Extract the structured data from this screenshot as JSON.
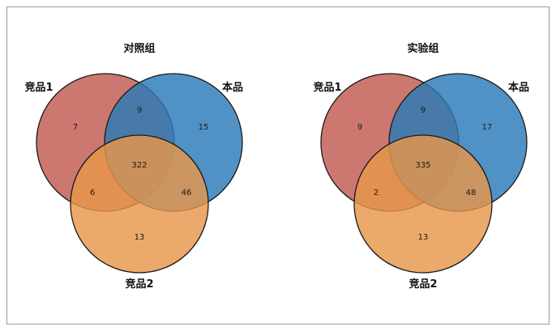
{
  "venns": [
    {
      "title": "对照组",
      "sets": [
        {
          "label": "竞品1",
          "color": "#c15a52"
        },
        {
          "label": "本品",
          "color": "#2a7ab8"
        },
        {
          "label": "竞品2",
          "color": "#e6964a"
        }
      ],
      "regions": {
        "a_only": "7",
        "b_only": "15",
        "c_only": "13",
        "ab": "9",
        "ac": "6",
        "bc": "46",
        "abc": "322"
      }
    },
    {
      "title": "实验组",
      "sets": [
        {
          "label": "竞品1",
          "color": "#c15a52"
        },
        {
          "label": "本品",
          "color": "#2a7ab8"
        },
        {
          "label": "竞品2",
          "color": "#e6964a"
        }
      ],
      "regions": {
        "a_only": "9",
        "b_only": "17",
        "c_only": "13",
        "ab": "9",
        "ac": "2",
        "bc": "48",
        "abc": "335"
      }
    }
  ]
}
